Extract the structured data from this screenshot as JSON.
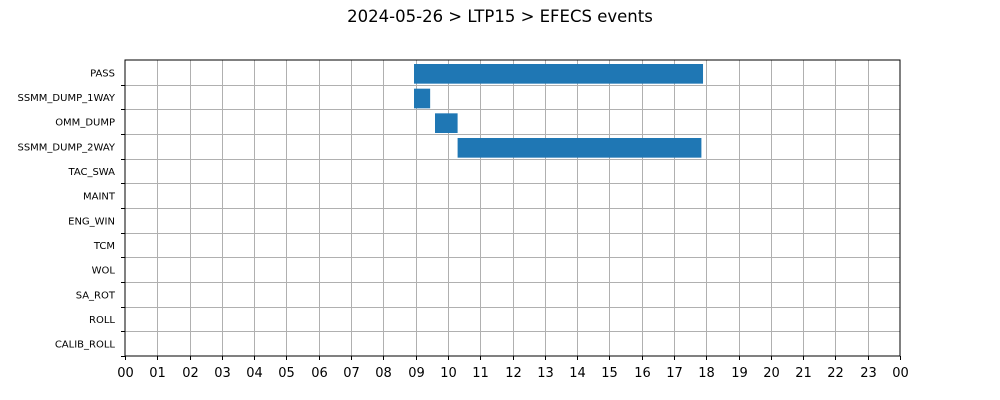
{
  "chart_data": {
    "type": "gantt",
    "title": "2024-05-26 > LTP15 > EFECS events",
    "xlabel": "",
    "ylabel": "",
    "xlim": [
      0,
      24
    ],
    "x_unit": "hour of day",
    "x_tick_labels": [
      "00",
      "01",
      "02",
      "03",
      "04",
      "05",
      "06",
      "07",
      "08",
      "09",
      "10",
      "11",
      "12",
      "13",
      "14",
      "15",
      "16",
      "17",
      "18",
      "19",
      "20",
      "21",
      "22",
      "23",
      "00"
    ],
    "categories": [
      "PASS",
      "SSMM_DUMP_1WAY",
      "OMM_DUMP",
      "SSMM_DUMP_2WAY",
      "TAC_SWA",
      "MAINT",
      "ENG_WIN",
      "TCM",
      "WOL",
      "SA_ROT",
      "ROLL",
      "CALIB_ROLL"
    ],
    "events": [
      {
        "category": "PASS",
        "start": 8.95,
        "end": 17.9
      },
      {
        "category": "SSMM_DUMP_1WAY",
        "start": 8.95,
        "end": 9.45
      },
      {
        "category": "OMM_DUMP",
        "start": 9.6,
        "end": 10.3
      },
      {
        "category": "SSMM_DUMP_2WAY",
        "start": 10.3,
        "end": 17.85
      }
    ],
    "bar_color": "#1f77b4",
    "grid": true,
    "legend": "none"
  }
}
